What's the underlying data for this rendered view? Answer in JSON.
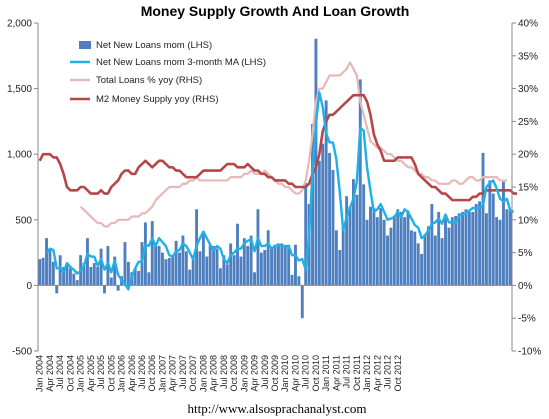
{
  "chart_data": {
    "type": "bar",
    "title": "Money Supply Growth And Loan Growth",
    "footer": "http://www.alsosprachanalyst.com",
    "colors": {
      "bars": "#4f7fbf",
      "ma_line": "#1fb0e8",
      "total_loans": "#e6b8b8",
      "m2": "#b5464a",
      "axis": "#888888"
    },
    "left_axis": {
      "ylim": [
        -500,
        2000
      ],
      "ticks": [
        "-500",
        "0",
        "500",
        "1,000",
        "1,500",
        "2,000"
      ],
      "tick_values": [
        -500,
        0,
        500,
        1000,
        1500,
        2000
      ]
    },
    "right_axis": {
      "ylim": [
        -10,
        40
      ],
      "ticks": [
        "-10%",
        "-5%",
        "0%",
        "5%",
        "10%",
        "15%",
        "20%",
        "25%",
        "30%",
        "35%",
        "40%"
      ],
      "tick_values": [
        -10,
        -5,
        0,
        5,
        10,
        15,
        20,
        25,
        30,
        35,
        40
      ]
    },
    "x_tick_labels": [
      "Jan 2004",
      "Apr 2004",
      "Jul 2004",
      "Oct 2004",
      "Jan 2005",
      "Apr 2005",
      "Jul 2005",
      "Oct 2005",
      "Jan 2006",
      "Apr 2006",
      "Jul 2006",
      "Oct 2006",
      "Jan 2007",
      "Apr 2007",
      "Jul 2007",
      "Oct 2007",
      "Jan 2008",
      "Apr 2008",
      "Jul 2008",
      "Oct 2008",
      "Jan 2009",
      "Apr 2009",
      "Jul 2009",
      "Oct 2009",
      "Jan 2010",
      "Apr 2010",
      "Jul 2010",
      "Oct 2010",
      "Jan 2011",
      "Apr 2011",
      "Jul 2011",
      "Oct 2011",
      "Jan 2012",
      "Apr 2012",
      "Jul 2012",
      "Oct 2012"
    ],
    "legend": [
      {
        "name": "Net New Loans mom (LHS)",
        "kind": "bar",
        "color": "#4f7fbf"
      },
      {
        "name": "Net New Loans mom 3-month MA (LHS)",
        "kind": "line",
        "color": "#1fb0e8"
      },
      {
        "name": "Total Loans % yoy (RHS)",
        "kind": "line",
        "color": "#e6b8b8"
      },
      {
        "name": "M2 Money Supply yoy (RHS)",
        "kind": "line",
        "color": "#b5464a"
      }
    ],
    "series": [
      {
        "name": "Net New Loans mom (LHS)",
        "axis": "left",
        "values": [
          200,
          210,
          360,
          280,
          180,
          -60,
          230,
          140,
          150,
          130,
          90,
          40,
          230,
          170,
          360,
          140,
          170,
          140,
          280,
          -60,
          300,
          60,
          220,
          -40,
          70,
          330,
          180,
          100,
          130,
          110,
          330,
          480,
          100,
          490,
          320,
          300,
          250,
          200,
          210,
          220,
          340,
          250,
          380,
          260,
          120,
          220,
          580,
          260,
          400,
          220,
          310,
          300,
          280,
          130,
          230,
          160,
          320,
          230,
          470,
          220,
          360,
          300,
          380,
          100,
          580,
          250,
          270,
          420,
          280,
          310,
          320,
          320,
          300,
          310,
          80,
          310,
          70,
          -250,
          780,
          620,
          1230,
          1880,
          950,
          1080,
          1410,
          1010,
          880,
          420,
          270,
          450,
          680,
          600,
          810,
          690,
          1570,
          770,
          500,
          600,
          590,
          520,
          590,
          500,
          380,
          440,
          530,
          580,
          560,
          520,
          570,
          420,
          410,
          320,
          240,
          390,
          450,
          620,
          380,
          560,
          360,
          510,
          440,
          520,
          530,
          550,
          560,
          580,
          560,
          560,
          620,
          640,
          1010,
          550,
          800,
          700,
          520,
          500,
          790,
          580,
          570
        ]
      },
      {
        "name": "Net New Loans mom 3-month MA (LHS)",
        "axis": "left",
        "values": [
          null,
          null,
          250,
          280,
          270,
          130,
          130,
          100,
          170,
          140,
          120,
          90,
          110,
          150,
          240,
          220,
          220,
          150,
          200,
          120,
          170,
          100,
          190,
          80,
          40,
          10,
          -30,
          70,
          130,
          180,
          180,
          310,
          300,
          360,
          300,
          360,
          330,
          300,
          230,
          220,
          260,
          270,
          320,
          300,
          250,
          200,
          300,
          360,
          410,
          360,
          310,
          270,
          300,
          280,
          200,
          170,
          230,
          250,
          280,
          280,
          320,
          340,
          350,
          260,
          360,
          300,
          300,
          320,
          280,
          300,
          310,
          300,
          300,
          300,
          230,
          230,
          190,
          200,
          120,
          380,
          860,
          1230,
          1470,
          1360,
          1160,
          1090,
          1090,
          960,
          710,
          420,
          520,
          590,
          660,
          790,
          1200,
          1180,
          900,
          720,
          560,
          580,
          620,
          560,
          500,
          510,
          520,
          560,
          520,
          580,
          560,
          510,
          460,
          440,
          360,
          380,
          420,
          470,
          480,
          510,
          470,
          540,
          480,
          480,
          480,
          530,
          540,
          550,
          570,
          590,
          590,
          590,
          610,
          750,
          780,
          800,
          740,
          660,
          640,
          660,
          570,
          560
        ]
      },
      {
        "name": "Total Loans % yoy (RHS)",
        "axis": "right",
        "values": [
          null,
          null,
          null,
          null,
          null,
          null,
          null,
          null,
          null,
          null,
          null,
          null,
          12,
          11.5,
          11,
          10.5,
          10,
          9.5,
          9.5,
          9,
          9,
          9.5,
          9.5,
          10,
          10,
          10,
          10,
          10.5,
          10.5,
          10.5,
          11,
          11,
          11.5,
          12,
          13,
          13.5,
          14,
          14.5,
          15,
          15,
          15,
          15,
          15.5,
          15.5,
          16,
          16,
          16.5,
          16,
          16,
          16,
          16,
          16,
          16,
          16,
          16,
          16,
          16.5,
          16.5,
          16.5,
          16.5,
          17,
          17,
          17.5,
          17,
          17,
          17,
          17.5,
          17,
          16.5,
          16,
          15.5,
          15.5,
          15,
          15,
          14.5,
          14,
          14,
          14.5,
          16,
          19,
          23,
          28,
          30,
          30,
          31,
          32,
          32,
          32,
          32,
          32.5,
          33,
          34,
          33,
          32,
          28,
          26,
          24,
          22,
          21.5,
          21,
          21,
          20.5,
          20,
          20,
          19.5,
          19,
          19,
          18.5,
          18,
          18,
          17.5,
          17,
          17,
          16.5,
          16.5,
          16,
          16,
          15.5,
          15.5,
          15.5,
          15.5,
          16,
          16,
          15.5,
          15.5,
          16,
          16.5,
          16.5,
          16,
          16,
          16.5,
          16.5,
          16.5,
          16.5,
          16.5,
          16,
          16,
          16
        ]
      },
      {
        "name": "M2 Money Supply yoy (RHS)",
        "axis": "right",
        "values": [
          19,
          20,
          20,
          20,
          19.5,
          19.5,
          18.5,
          17,
          15,
          14.5,
          14.5,
          14.5,
          15,
          15,
          14.5,
          14,
          14,
          14,
          14.5,
          14,
          14,
          15,
          15.5,
          16,
          17,
          17.5,
          17.5,
          17,
          17,
          18,
          18.5,
          19,
          18.5,
          18,
          18.5,
          19,
          19,
          18.5,
          18,
          18,
          17.5,
          17.5,
          17,
          16.5,
          16.5,
          16.5,
          16.5,
          17,
          17.5,
          17.5,
          17.5,
          17.5,
          17.5,
          17.5,
          18,
          18.5,
          18.5,
          18.5,
          18,
          18,
          18,
          18.5,
          18,
          17.5,
          17.5,
          17,
          17,
          16.5,
          16.5,
          16,
          16,
          16,
          16,
          15.5,
          15.5,
          15,
          15,
          15,
          15,
          15.5,
          17,
          18,
          20,
          23.5,
          25,
          26,
          26,
          26.5,
          27,
          27.5,
          28,
          28.5,
          29,
          29,
          29,
          29,
          28,
          26,
          23,
          21.5,
          20.5,
          19,
          19,
          19,
          19,
          19.5,
          19.5,
          19.5,
          19.5,
          19.5,
          18.5,
          17,
          16.5,
          16,
          15.5,
          15,
          15,
          14.5,
          14,
          14,
          13.5,
          13,
          13,
          13,
          13,
          13,
          13,
          13.5,
          13.5,
          14,
          14,
          14.5,
          14.5,
          14.5,
          14.5,
          14.5,
          14.5,
          14.5,
          14.5,
          14,
          14
        ]
      }
    ]
  }
}
